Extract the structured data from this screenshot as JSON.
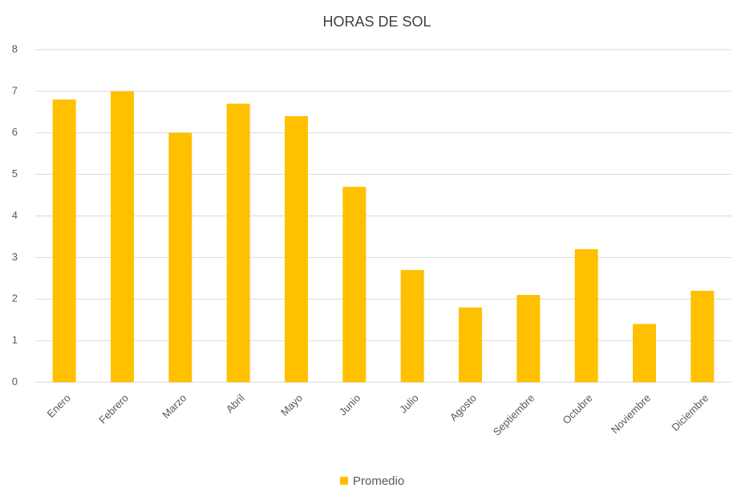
{
  "chart_data": {
    "type": "bar",
    "title": "HORAS DE SOL",
    "categories": [
      "Enero",
      "Febrero",
      "Marzo",
      "Abril",
      "Mayo",
      "Junio",
      "Julio",
      "Agosto",
      "Septiembre",
      "Octubre",
      "Noviembre",
      "Diciembre"
    ],
    "series": [
      {
        "name": "Promedio",
        "color": "#ffc000",
        "values": [
          6.8,
          7.0,
          6.0,
          6.7,
          6.4,
          4.7,
          2.7,
          1.8,
          2.1,
          3.2,
          1.4,
          2.2
        ]
      }
    ],
    "ylim": [
      0,
      8
    ],
    "yticks": [
      0,
      1,
      2,
      3,
      4,
      5,
      6,
      7,
      8
    ],
    "grid": true,
    "legend": "bottom"
  }
}
